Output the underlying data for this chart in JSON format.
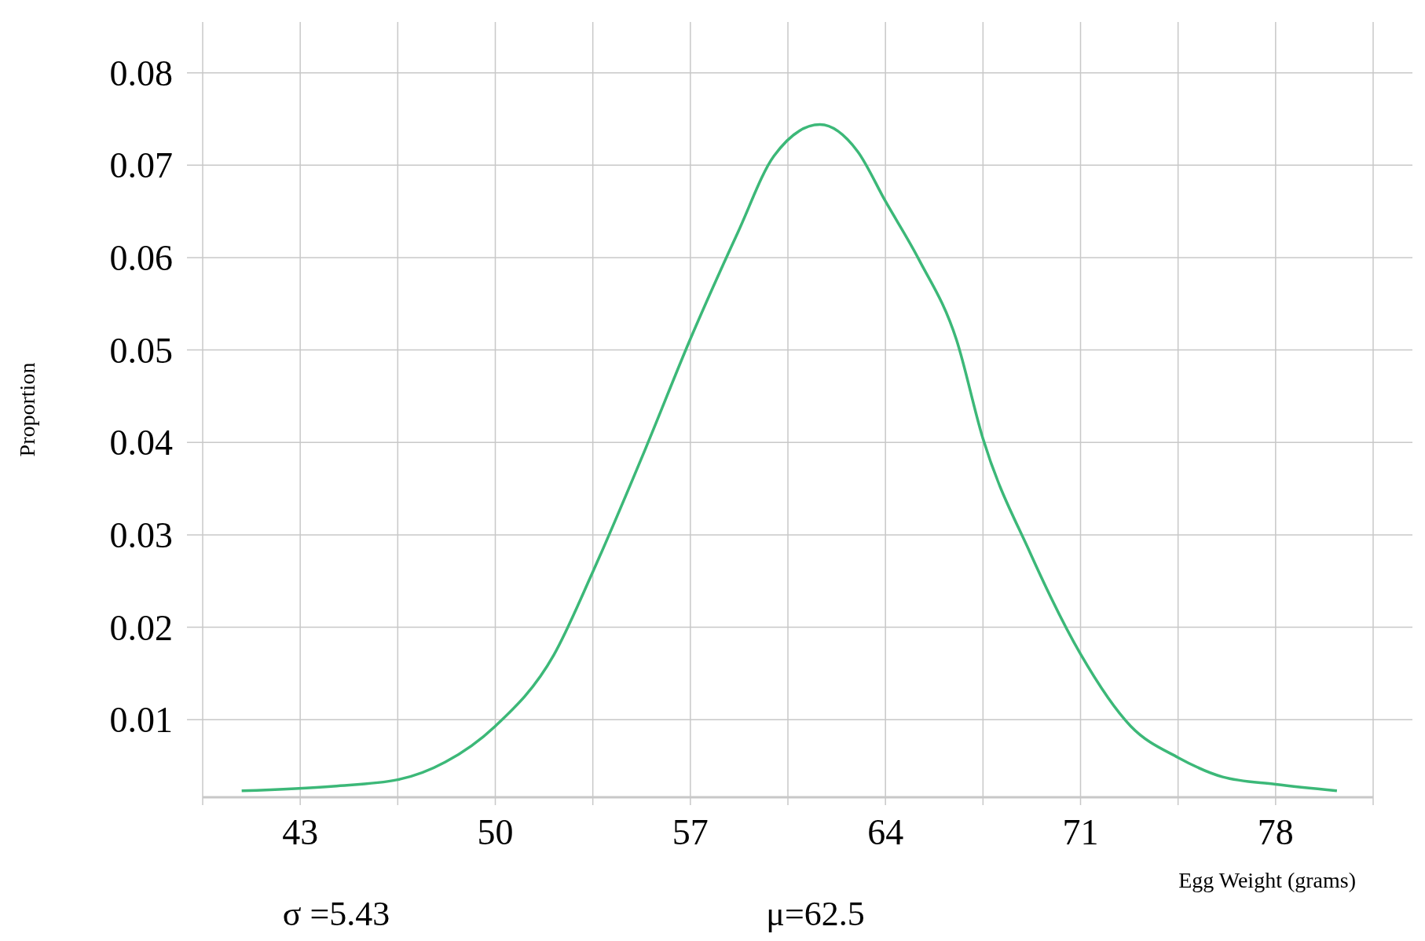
{
  "chart_data": {
    "type": "line",
    "xlabel": "Egg Weight (grams)",
    "ylabel": "Proportion",
    "annotations": [
      "σ =5.43",
      "μ=62.5"
    ],
    "x": [
      40.9,
      44.2,
      46.5,
      48.2,
      50,
      52.1,
      53.5,
      55.4,
      57,
      58.7,
      60,
      61.65,
      63,
      64,
      65.2,
      66.55,
      67.5,
      69.2,
      71,
      72.8,
      74.5,
      76.1,
      78,
      80.2
    ],
    "series": [
      {
        "color": "#3cb878",
        "values": [
          0.0023,
          0.0028,
          0.0035,
          0.0054,
          0.0093,
          0.017,
          0.026,
          0.0394,
          0.0512,
          0.0627,
          0.071,
          0.0744,
          0.0715,
          0.0661,
          0.0598,
          0.0511,
          0.0404,
          0.028,
          0.0171,
          0.0093,
          0.0059,
          0.0038,
          0.003,
          0.0023
        ]
      }
    ],
    "xlim": [
      39.5,
      81.5
    ],
    "xticks": [
      {
        "value": 39.5,
        "label": null
      },
      43,
      {
        "value": 46.5,
        "label": null
      },
      50,
      {
        "value": 53.5,
        "label": null
      },
      57,
      {
        "value": 60.5,
        "label": null
      },
      64,
      {
        "value": 67.5,
        "label": null
      },
      71,
      {
        "value": 74.5,
        "label": null
      },
      78,
      {
        "value": 81.5,
        "label": null
      }
    ],
    "ylim": [
      0.0016,
      0.0855
    ],
    "yticks": [
      0.01,
      0.02,
      0.03,
      0.04,
      0.05,
      0.06,
      0.07,
      0.08
    ],
    "grid": true,
    "line_style": "solid",
    "marker": "none"
  }
}
